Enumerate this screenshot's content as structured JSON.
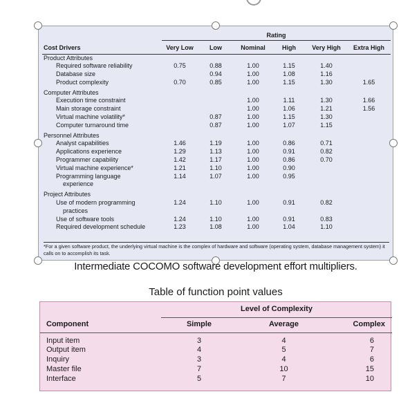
{
  "cocomo": {
    "rating_label": "Rating",
    "cost_drivers_label": "Cost Drivers",
    "columns": [
      "Very Low",
      "Low",
      "Nominal",
      "High",
      "Very High",
      "Extra High"
    ],
    "groups": [
      {
        "name": "Product Attributes",
        "rows": [
          {
            "driver": "Required software reliability",
            "cont": "",
            "vals": [
              "0.75",
              "0.88",
              "1.00",
              "1.15",
              "1.40",
              ""
            ]
          },
          {
            "driver": "Database size",
            "cont": "",
            "vals": [
              "",
              "0.94",
              "1.00",
              "1.08",
              "1.16",
              ""
            ]
          },
          {
            "driver": "Product complexity",
            "cont": "",
            "vals": [
              "0.70",
              "0.85",
              "1.00",
              "1.15",
              "1.30",
              "1.65"
            ]
          }
        ]
      },
      {
        "name": "Computer Attributes",
        "rows": [
          {
            "driver": "Execution time constraint",
            "cont": "",
            "vals": [
              "",
              "",
              "1.00",
              "1.11",
              "1.30",
              "1.66"
            ]
          },
          {
            "driver": "Main storage constraint",
            "cont": "",
            "vals": [
              "",
              "",
              "1.00",
              "1.06",
              "1.21",
              "1.56"
            ]
          },
          {
            "driver": "Virtual machine volatility*",
            "cont": "",
            "vals": [
              "",
              "0.87",
              "1.00",
              "1.15",
              "1.30",
              ""
            ]
          },
          {
            "driver": "Computer turnaround time",
            "cont": "",
            "vals": [
              "",
              "0.87",
              "1.00",
              "1.07",
              "1.15",
              ""
            ]
          }
        ]
      },
      {
        "name": "Personnel Attributes",
        "rows": [
          {
            "driver": "Analyst capabilities",
            "cont": "",
            "vals": [
              "1.46",
              "1.19",
              "1.00",
              "0.86",
              "0.71",
              ""
            ]
          },
          {
            "driver": "Applications experience",
            "cont": "",
            "vals": [
              "1.29",
              "1.13",
              "1.00",
              "0.91",
              "0.82",
              ""
            ]
          },
          {
            "driver": "Programmer capability",
            "cont": "",
            "vals": [
              "1.42",
              "1.17",
              "1.00",
              "0.86",
              "0.70",
              ""
            ]
          },
          {
            "driver": "Virtual machine experience*",
            "cont": "",
            "vals": [
              "1.21",
              "1.10",
              "1.00",
              "0.90",
              "",
              ""
            ]
          },
          {
            "driver": "Programming language",
            "cont": "experience",
            "vals": [
              "1.14",
              "1.07",
              "1.00",
              "0.95",
              "",
              ""
            ]
          }
        ]
      },
      {
        "name": "Project Attributes",
        "rows": [
          {
            "driver": "Use of modern programming",
            "cont": "practices",
            "vals": [
              "1.24",
              "1.10",
              "1.00",
              "0.91",
              "0.82",
              ""
            ]
          },
          {
            "driver": "Use of software tools",
            "cont": "",
            "vals": [
              "1.24",
              "1.10",
              "1.00",
              "0.91",
              "0.83",
              ""
            ]
          },
          {
            "driver": "Required development schedule",
            "cont": "",
            "vals": [
              "1.23",
              "1.08",
              "1.00",
              "1.04",
              "1.10",
              ""
            ]
          }
        ]
      }
    ],
    "footnote": "*For a given software product, the underlying virtual machine is the complex of hardware and software (operating system, database management system) it calls on to accomplish its task."
  },
  "cocomo_caption": "Intermediate COCOMO software development effort multipliers.",
  "fp": {
    "title": "Table of function point values",
    "level_label": "Level of Complexity",
    "component_label": "Component",
    "columns": [
      "Simple",
      "Average",
      "Complex"
    ],
    "rows": [
      {
        "component": "Input item",
        "vals": [
          "3",
          "4",
          "6"
        ]
      },
      {
        "component": "Output item",
        "vals": [
          "4",
          "5",
          "7"
        ]
      },
      {
        "component": "Inquiry",
        "vals": [
          "3",
          "4",
          "6"
        ]
      },
      {
        "component": "Master file",
        "vals": [
          "7",
          "10",
          "15"
        ]
      },
      {
        "component": "Interface",
        "vals": [
          "5",
          "7",
          "10"
        ]
      }
    ]
  },
  "colors": {
    "cocomo_bg": "#e6e8f4",
    "fp_bg": "#f5dceb"
  }
}
